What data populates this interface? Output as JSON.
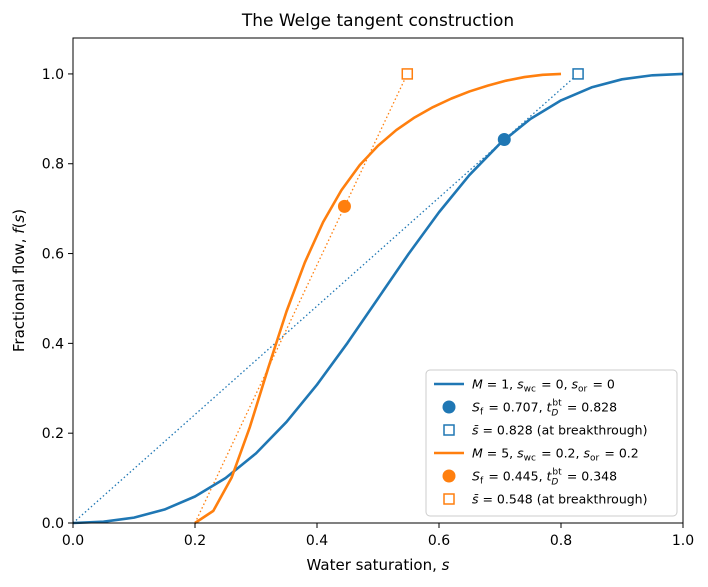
{
  "chart_data": {
    "type": "line",
    "title": "The Welge tangent construction",
    "xlabel": "Water saturation, s",
    "ylabel": "Fractional flow, f(s)",
    "xlim": [
      0.0,
      1.0
    ],
    "ylim": [
      0.0,
      1.08
    ],
    "xticks": [
      "0.0",
      "0.2",
      "0.4",
      "0.6",
      "0.8",
      "1.0"
    ],
    "yticks": [
      "0.0",
      "0.2",
      "0.4",
      "0.6",
      "0.8",
      "1.0"
    ],
    "grid": false,
    "legend_position": "lower-right",
    "colors": {
      "case1": "#1f77b4",
      "case2": "#ff7f0e"
    },
    "series": [
      {
        "name": "M = 1, swc = 0, sor = 0",
        "kind": "curve",
        "color": "#1f77b4",
        "M": 1,
        "swc": 0,
        "sor": 0,
        "x": [
          0.0,
          0.05,
          0.1,
          0.15,
          0.2,
          0.25,
          0.3,
          0.35,
          0.4,
          0.45,
          0.5,
          0.55,
          0.6,
          0.65,
          0.7,
          0.75,
          0.8,
          0.85,
          0.9,
          0.95,
          1.0
        ],
        "y": [
          0.0,
          0.003,
          0.012,
          0.03,
          0.059,
          0.1,
          0.155,
          0.225,
          0.308,
          0.401,
          0.5,
          0.599,
          0.692,
          0.775,
          0.845,
          0.9,
          0.941,
          0.97,
          0.988,
          0.997,
          1.0
        ]
      },
      {
        "name": "Sf = 0.707,  tDbt = 0.828",
        "kind": "shock-point",
        "color": "#1f77b4",
        "x": [
          0.707
        ],
        "y": [
          0.854
        ]
      },
      {
        "name": "s̄ = 0.828 (at breakthrough)",
        "kind": "breakthrough-point",
        "color": "#1f77b4",
        "x": [
          0.828
        ],
        "y": [
          1.0
        ]
      },
      {
        "name": "tangent-1",
        "kind": "tangent",
        "color": "#1f77b4",
        "x": [
          0.0,
          0.828
        ],
        "y": [
          0.0,
          1.0
        ]
      },
      {
        "name": "M = 5, swc = 0.2, sor = 0.2",
        "kind": "curve",
        "color": "#ff7f0e",
        "M": 5,
        "swc": 0.2,
        "sor": 0.2,
        "x": [
          0.2,
          0.23,
          0.26,
          0.29,
          0.32,
          0.35,
          0.38,
          0.41,
          0.44,
          0.47,
          0.5,
          0.53,
          0.56,
          0.59,
          0.62,
          0.65,
          0.68,
          0.71,
          0.74,
          0.77,
          0.8
        ],
        "y": [
          0.0,
          0.027,
          0.101,
          0.214,
          0.345,
          0.471,
          0.58,
          0.67,
          0.741,
          0.797,
          0.84,
          0.875,
          0.903,
          0.926,
          0.945,
          0.961,
          0.974,
          0.985,
          0.993,
          0.998,
          1.0
        ]
      },
      {
        "name": "Sf = 0.445,  tDbt = 0.348",
        "kind": "shock-point",
        "color": "#ff7f0e",
        "x": [
          0.445
        ],
        "y": [
          0.705
        ]
      },
      {
        "name": "s̄ = 0.548 (at breakthrough)",
        "kind": "breakthrough-point",
        "color": "#ff7f0e",
        "x": [
          0.548
        ],
        "y": [
          1.0
        ]
      },
      {
        "name": "tangent-2",
        "kind": "tangent",
        "color": "#ff7f0e",
        "x": [
          0.2,
          0.548
        ],
        "y": [
          0.0,
          1.0
        ]
      }
    ],
    "legend": [
      {
        "kind": "line",
        "color": "#1f77b4",
        "parts": [
          [
            "i",
            "M"
          ],
          [
            "n",
            " = 1, "
          ],
          [
            "i",
            "s"
          ],
          [
            "sub",
            "wc"
          ],
          [
            "n",
            " = 0, "
          ],
          [
            "i",
            "s"
          ],
          [
            "sub",
            "or"
          ],
          [
            "n",
            " = 0"
          ]
        ]
      },
      {
        "kind": "dot",
        "color": "#1f77b4",
        "parts": [
          [
            "i",
            "S"
          ],
          [
            "sub",
            "f"
          ],
          [
            "n",
            " = 0.707,  "
          ],
          [
            "i",
            "t"
          ],
          [
            "subsup",
            "D",
            "bt"
          ],
          [
            "n",
            " = 0.828"
          ]
        ]
      },
      {
        "kind": "square",
        "color": "#1f77b4",
        "parts": [
          [
            "i",
            "s̄"
          ],
          [
            "n",
            " = 0.828 (at breakthrough)"
          ]
        ]
      },
      {
        "kind": "line",
        "color": "#ff7f0e",
        "parts": [
          [
            "i",
            "M"
          ],
          [
            "n",
            " = 5, "
          ],
          [
            "i",
            "s"
          ],
          [
            "sub",
            "wc"
          ],
          [
            "n",
            " = 0.2, "
          ],
          [
            "i",
            "s"
          ],
          [
            "sub",
            "or"
          ],
          [
            "n",
            " = 0.2"
          ]
        ]
      },
      {
        "kind": "dot",
        "color": "#ff7f0e",
        "parts": [
          [
            "i",
            "S"
          ],
          [
            "sub",
            "f"
          ],
          [
            "n",
            " = 0.445,  "
          ],
          [
            "i",
            "t"
          ],
          [
            "subsup",
            "D",
            "bt"
          ],
          [
            "n",
            " = 0.348"
          ]
        ]
      },
      {
        "kind": "square",
        "color": "#ff7f0e",
        "parts": [
          [
            "i",
            "s̄"
          ],
          [
            "n",
            " = 0.548 (at breakthrough)"
          ]
        ]
      }
    ]
  }
}
